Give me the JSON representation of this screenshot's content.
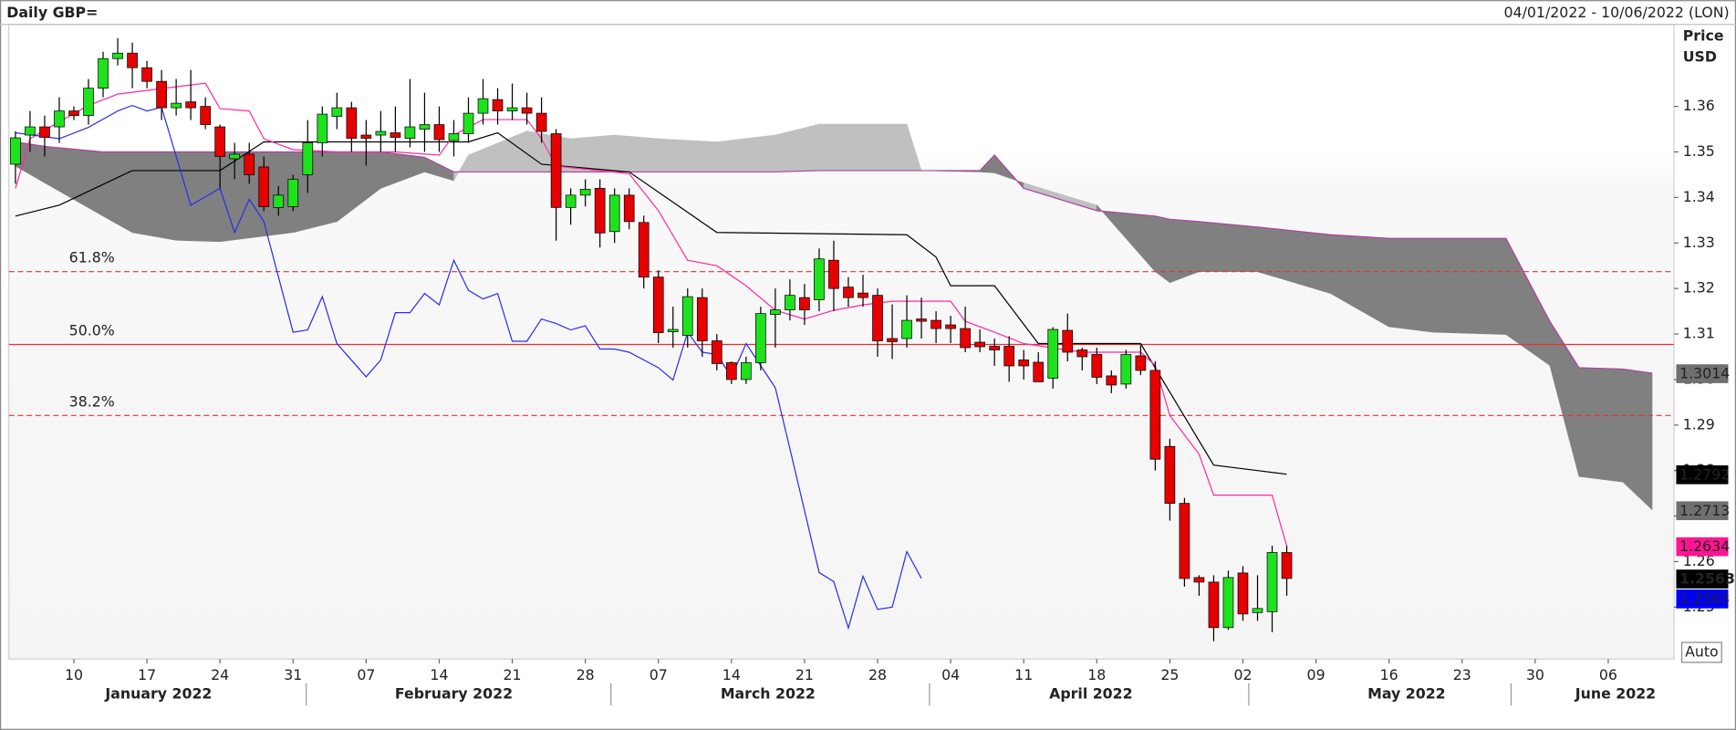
{
  "chart_data": {
    "type": "candlestick",
    "title": "Daily GBP=",
    "date_range": "04/01/2022 - 10/06/2022 (LON)",
    "y_label": "Price",
    "y_unit": "USD",
    "scale_button": "Auto",
    "xlim": [
      -0.45,
      113.5
    ],
    "ylim": [
      1.2386,
      1.378
    ],
    "yticks": [
      1.25,
      1.26,
      1.27,
      1.28,
      1.29,
      {
        "value": 1.3,
        "label": "1.30"
      },
      1.31,
      1.32,
      1.33,
      1.34,
      1.35,
      1.36
    ],
    "xticks": [
      {
        "value": 4,
        "label": "10"
      },
      {
        "value": 9,
        "label": "17"
      },
      {
        "value": 14,
        "label": "24"
      },
      {
        "value": 19,
        "label": "31"
      },
      {
        "value": 24,
        "label": "07"
      },
      {
        "value": 29,
        "label": "14"
      },
      {
        "value": 34,
        "label": "21"
      },
      {
        "value": 39,
        "label": "28"
      },
      {
        "value": 44,
        "label": "07"
      },
      {
        "value": 49,
        "label": "14"
      },
      {
        "value": 54,
        "label": "21"
      },
      {
        "value": 59,
        "label": "28"
      },
      {
        "value": 64,
        "label": "04"
      },
      {
        "value": 69,
        "label": "11"
      },
      {
        "value": 74,
        "label": "18"
      },
      {
        "value": 79,
        "label": "25"
      },
      {
        "value": 84,
        "label": "02"
      },
      {
        "value": 89,
        "label": "09"
      },
      {
        "value": 94,
        "label": "16"
      },
      {
        "value": 99,
        "label": "23"
      },
      {
        "value": 104,
        "label": "30"
      },
      {
        "value": 109,
        "label": "06"
      }
    ],
    "month_labels": [
      {
        "value": 9.8,
        "label": "January 2022"
      },
      {
        "value": 30,
        "label": "February 2022"
      },
      {
        "value": 51.5,
        "label": "March 2022"
      },
      {
        "value": 73.6,
        "label": "April 2022"
      },
      {
        "value": 95.2,
        "label": "May 2022"
      },
      {
        "value": 109.5,
        "label": "June 2022"
      }
    ],
    "candles": {
      "up_color": "#1ee21e",
      "down_color": "#e60000",
      "x": [
        0,
        1,
        2,
        3,
        4,
        5,
        6,
        7,
        8,
        9,
        10,
        11,
        12,
        13,
        14,
        15,
        16,
        17,
        18,
        19,
        20,
        21,
        22,
        23,
        24,
        25,
        26,
        27,
        28,
        29,
        30,
        31,
        32,
        33,
        34,
        35,
        36,
        37,
        38,
        39,
        40,
        41,
        42,
        43,
        44,
        45,
        46,
        47,
        48,
        49,
        50,
        51,
        52,
        53,
        54,
        55,
        56,
        57,
        58,
        59,
        60,
        61,
        62,
        63,
        64,
        65,
        66,
        67,
        68,
        69,
        70,
        71,
        72,
        73,
        74,
        75,
        76,
        77,
        78,
        79,
        80,
        81,
        82,
        83,
        84,
        85,
        86,
        87
      ],
      "open": [
        1.3473,
        1.3537,
        1.3555,
        1.3555,
        1.359,
        1.358,
        1.364,
        1.3705,
        1.3717,
        1.3685,
        1.3655,
        1.3597,
        1.361,
        1.36,
        1.3555,
        1.3485,
        1.3495,
        1.3467,
        1.3378,
        1.338,
        1.345,
        1.352,
        1.3578,
        1.3597,
        1.3537,
        1.3537,
        1.3542,
        1.353,
        1.355,
        1.356,
        1.3525,
        1.354,
        1.3585,
        1.3615,
        1.359,
        1.3597,
        1.3585,
        1.354,
        1.3378,
        1.3405,
        1.342,
        1.3325,
        1.3405,
        1.3345,
        1.3225,
        1.3105,
        1.3097,
        1.318,
        1.3085,
        1.3037,
        1.3,
        1.3037,
        1.3143,
        1.3153,
        1.318,
        1.3175,
        1.3262,
        1.3203,
        1.319,
        1.3185,
        1.309,
        1.309,
        1.3133,
        1.313,
        1.312,
        1.3112,
        1.3082,
        1.3073,
        1.3073,
        1.3043,
        1.3038,
        1.3003,
        1.3108,
        1.3065,
        1.3055,
        1.3008,
        1.299,
        1.3052,
        1.302,
        1.2853,
        1.2728,
        1.2565,
        1.2555,
        1.2455,
        1.2575,
        1.2488,
        1.249,
        1.262
      ],
      "high": [
        1.3545,
        1.359,
        1.358,
        1.362,
        1.36,
        1.366,
        1.372,
        1.375,
        1.374,
        1.37,
        1.368,
        1.366,
        1.368,
        1.362,
        1.356,
        1.352,
        1.352,
        1.349,
        1.3425,
        1.345,
        1.357,
        1.36,
        1.363,
        1.361,
        1.357,
        1.359,
        1.36,
        1.366,
        1.363,
        1.36,
        1.357,
        1.362,
        1.366,
        1.364,
        1.365,
        1.363,
        1.362,
        1.355,
        1.342,
        1.344,
        1.344,
        1.342,
        1.342,
        1.336,
        1.324,
        1.316,
        1.32,
        1.32,
        1.31,
        1.304,
        1.305,
        1.316,
        1.32,
        1.322,
        1.321,
        1.3288,
        1.3305,
        1.3225,
        1.323,
        1.32,
        1.3165,
        1.3185,
        1.318,
        1.315,
        1.314,
        1.316,
        1.311,
        1.309,
        1.3095,
        1.3065,
        1.306,
        1.3115,
        1.3145,
        1.307,
        1.307,
        1.302,
        1.3065,
        1.3075,
        1.304,
        1.287,
        1.274,
        1.257,
        1.257,
        1.258,
        1.259,
        1.257,
        1.2635,
        1.2635
      ],
      "low": [
        1.343,
        1.35,
        1.349,
        1.352,
        1.357,
        1.356,
        1.362,
        1.369,
        1.364,
        1.364,
        1.357,
        1.358,
        1.357,
        1.355,
        1.342,
        1.344,
        1.343,
        1.337,
        1.336,
        1.337,
        1.341,
        1.349,
        1.355,
        1.35,
        1.347,
        1.35,
        1.35,
        1.351,
        1.35,
        1.35,
        1.349,
        1.352,
        1.356,
        1.356,
        1.357,
        1.356,
        1.352,
        1.3305,
        1.334,
        1.338,
        1.329,
        1.33,
        1.333,
        1.32,
        1.308,
        1.307,
        1.307,
        1.305,
        1.302,
        1.299,
        1.299,
        1.302,
        1.307,
        1.313,
        1.312,
        1.315,
        1.315,
        1.316,
        1.316,
        1.305,
        1.3045,
        1.307,
        1.309,
        1.308,
        1.308,
        1.306,
        1.306,
        1.303,
        1.2995,
        1.3,
        1.2995,
        1.298,
        1.304,
        1.302,
        1.299,
        1.297,
        1.298,
        1.301,
        1.28,
        1.269,
        1.2545,
        1.2525,
        1.2425,
        1.245,
        1.247,
        1.247,
        1.2445,
        1.2525
      ],
      "close": [
        1.3531,
        1.3555,
        1.3532,
        1.359,
        1.358,
        1.364,
        1.3705,
        1.3717,
        1.3685,
        1.3655,
        1.3597,
        1.3607,
        1.3597,
        1.356,
        1.349,
        1.3495,
        1.345,
        1.338,
        1.3405,
        1.344,
        1.352,
        1.3583,
        1.3597,
        1.353,
        1.353,
        1.3545,
        1.3532,
        1.3555,
        1.356,
        1.3527,
        1.354,
        1.3585,
        1.3617,
        1.359,
        1.3597,
        1.3585,
        1.3545,
        1.3378,
        1.3405,
        1.3418,
        1.3322,
        1.3405,
        1.3347,
        1.3225,
        1.3103,
        1.311,
        1.3182,
        1.3085,
        1.3035,
        1.3,
        1.3037,
        1.3145,
        1.3153,
        1.3185,
        1.3153,
        1.3265,
        1.32,
        1.318,
        1.318,
        1.3085,
        1.3083,
        1.313,
        1.3128,
        1.3112,
        1.3112,
        1.307,
        1.3072,
        1.3065,
        1.303,
        1.303,
        1.2995,
        1.311,
        1.306,
        1.305,
        1.3005,
        1.2988,
        1.3055,
        1.302,
        1.2825,
        1.2728,
        1.2563,
        1.2555,
        1.2455,
        1.2565,
        1.2485,
        1.2497,
        1.262,
        1.2563
      ]
    },
    "cloud": {
      "bull_color": "#c0c0c0",
      "bear_color": "#808080",
      "edge_color": "#b040a0",
      "x": [
        0,
        2,
        6,
        8,
        11,
        14,
        19,
        22,
        25,
        28,
        30,
        31,
        35,
        38,
        41,
        44,
        48,
        52,
        55,
        61,
        62,
        66,
        67,
        69,
        74,
        78,
        79,
        81,
        85,
        90,
        94,
        97,
        102,
        105,
        107,
        110,
        112
      ],
      "span_a": [
        1.3469,
        1.3432,
        1.3359,
        1.3323,
        1.3306,
        1.3303,
        1.3323,
        1.3347,
        1.342,
        1.3456,
        1.3437,
        1.3493,
        1.3546,
        1.3529,
        1.3537,
        1.3529,
        1.3522,
        1.3537,
        1.3561,
        1.3561,
        1.3459,
        1.3456,
        1.3454,
        1.3432,
        1.3383,
        1.3237,
        1.3213,
        1.3237,
        1.3237,
        1.3189,
        1.3116,
        1.3104,
        1.3099,
        1.3031,
        1.2787,
        1.2775,
        1.2714
      ],
      "span_b": [
        1.3522,
        1.3512,
        1.35,
        1.35,
        1.35,
        1.35,
        1.35,
        1.35,
        1.35,
        1.3488,
        1.3456,
        1.3456,
        1.3456,
        1.3456,
        1.3456,
        1.3456,
        1.3456,
        1.3456,
        1.3459,
        1.3459,
        1.3459,
        1.3459,
        1.3493,
        1.342,
        1.3371,
        1.3359,
        1.3352,
        1.3347,
        1.3335,
        1.3318,
        1.331,
        1.331,
        1.331,
        1.3128,
        1.3026,
        1.3023,
        1.3014
      ]
    },
    "lines": [
      {
        "color": "#000000",
        "x": [
          0,
          3,
          7,
          8,
          14,
          17,
          31,
          33,
          36,
          42,
          48,
          61,
          63,
          64,
          67,
          70,
          77,
          82,
          85,
          87
        ],
        "values": [
          1.3359,
          1.3383,
          1.3444,
          1.3459,
          1.3459,
          1.3522,
          1.3522,
          1.3542,
          1.3473,
          1.3456,
          1.3323,
          1.3318,
          1.3269,
          1.3206,
          1.3206,
          1.3079,
          1.3079,
          1.2812,
          1.28,
          1.2792
        ]
      },
      {
        "color": "#ff2aa0",
        "x": [
          0,
          1,
          3,
          5,
          7,
          10,
          13,
          14,
          16,
          17,
          19,
          22,
          26,
          29,
          30,
          32,
          35,
          36,
          37,
          42,
          44,
          46,
          48,
          50,
          52,
          54,
          56,
          58,
          60,
          64,
          65,
          67,
          69,
          73,
          77,
          78,
          79,
          81,
          82,
          86,
          87
        ],
        "values": [
          1.342,
          1.3529,
          1.3566,
          1.3602,
          1.3627,
          1.3639,
          1.3651,
          1.3595,
          1.359,
          1.3529,
          1.3505,
          1.35,
          1.35,
          1.3493,
          1.3537,
          1.3571,
          1.3571,
          1.3529,
          1.3469,
          1.3452,
          1.3371,
          1.3262,
          1.325,
          1.3206,
          1.3152,
          1.3133,
          1.3152,
          1.3164,
          1.3172,
          1.3172,
          1.3128,
          1.3104,
          1.3079,
          1.306,
          1.306,
          1.3031,
          1.2921,
          1.2836,
          1.2746,
          1.2746,
          1.2634
        ]
      },
      {
        "color": "#2b2bef",
        "x": [
          0,
          3,
          5,
          7,
          8,
          9,
          10,
          12,
          14,
          15,
          16,
          17,
          19,
          20,
          21,
          22,
          24,
          25,
          26,
          27,
          28,
          29,
          30,
          31,
          32,
          33,
          34,
          35,
          36,
          37,
          38,
          39,
          40,
          41,
          42,
          44,
          45,
          46,
          47,
          48,
          49,
          50,
          52,
          53,
          55,
          56,
          57,
          58,
          59,
          60,
          61,
          62
        ],
        "values": [
          1.3542,
          1.3529,
          1.3554,
          1.359,
          1.3602,
          1.359,
          1.3598,
          1.3383,
          1.342,
          1.3323,
          1.3396,
          1.3347,
          1.3104,
          1.3109,
          1.3182,
          1.3079,
          1.3006,
          1.3043,
          1.3147,
          1.3147,
          1.3189,
          1.3164,
          1.3262,
          1.3196,
          1.3177,
          1.3189,
          1.3084,
          1.3084,
          1.3133,
          1.3123,
          1.3109,
          1.3118,
          1.3067,
          1.3067,
          1.306,
          1.3026,
          1.2999,
          1.3104,
          1.306,
          1.3055,
          1.3006,
          1.3079,
          1.2982,
          1.2848,
          1.2576,
          1.2556,
          1.2454,
          1.2568,
          1.2495,
          1.25,
          1.2622,
          1.2563
        ]
      }
    ],
    "levels": [
      {
        "label": "61.8%",
        "value": 1.3237,
        "dashed": true
      },
      {
        "label": "50.0%",
        "value": 1.3077,
        "dashed": false
      },
      {
        "label": "38.2%",
        "value": 1.2921,
        "dashed": true
      }
    ],
    "level_color": "#e83030",
    "price_labels": [
      {
        "value": 1.3014,
        "background": "#707070",
        "bold": false
      },
      {
        "value": 1.2792,
        "background": "#000000",
        "bold": false
      },
      {
        "value": 1.2713,
        "background": "#707070",
        "bold": false
      },
      {
        "value": 1.2634,
        "background": "#ff1493",
        "bold": false
      },
      {
        "value": 1.2563,
        "background": "#000000",
        "bold": true
      },
      {
        "value": 1.2563,
        "background": "#0000ff",
        "bold": false
      }
    ]
  }
}
